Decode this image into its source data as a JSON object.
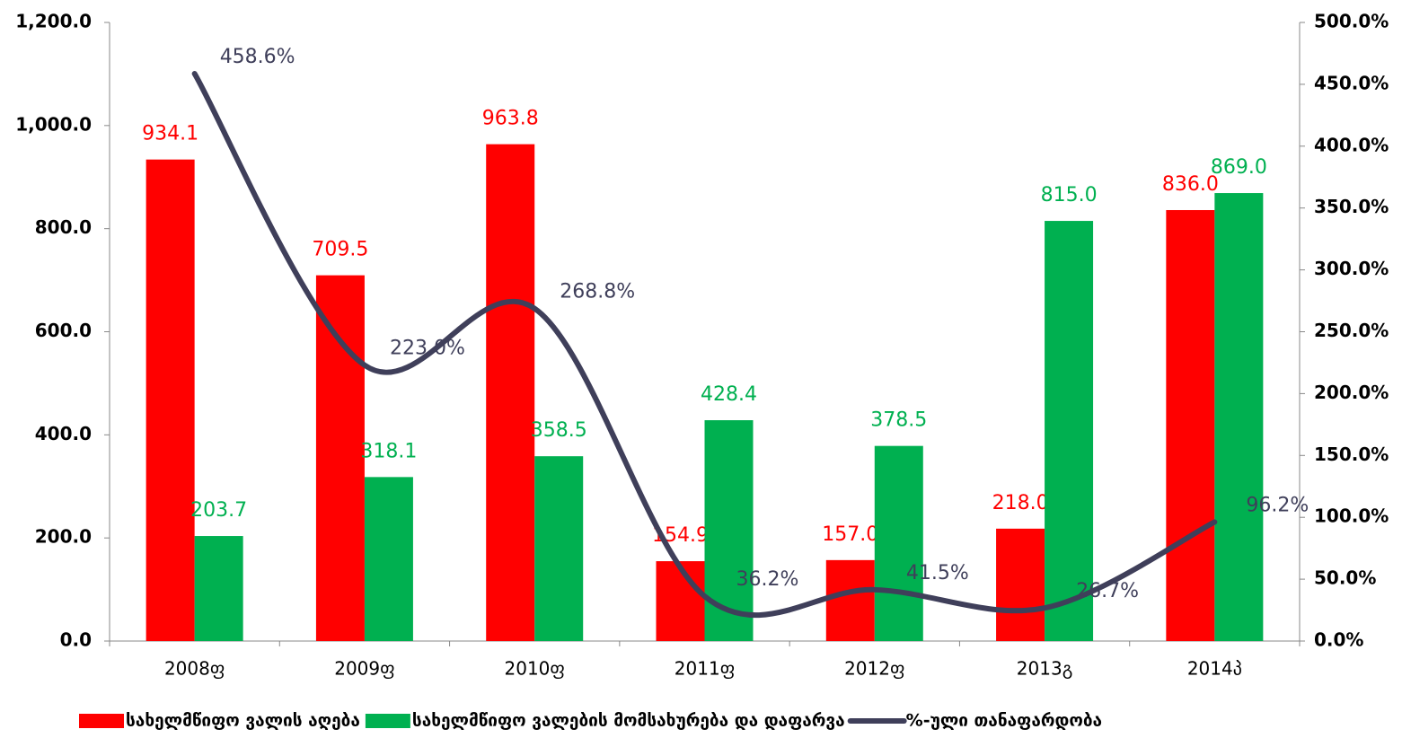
{
  "chart_data": {
    "type": "bar",
    "categories": [
      "2008ფ",
      "2009ფ",
      "2010ფ",
      "2011ფ",
      "2012ფ",
      "2013გ",
      "2014პ"
    ],
    "series": [
      {
        "name": "სახელმწიფო  ვალის აღება",
        "color": "#ff0000",
        "type": "bar",
        "values": [
          934.1,
          709.5,
          963.8,
          154.9,
          157.0,
          218.0,
          836.0
        ],
        "value_labels": [
          "934.1",
          "709.5",
          "963.8",
          "154.9",
          "157.0",
          "218.0",
          "836.0"
        ]
      },
      {
        "name": "სახელმწიფო ვალების მომსახურება და  დაფარვა",
        "color": "#00b050",
        "type": "bar",
        "values": [
          203.7,
          318.1,
          358.5,
          428.4,
          378.5,
          815.0,
          869.0
        ],
        "value_labels": [
          "203.7",
          "318.1",
          "358.5",
          "428.4",
          "378.5",
          "815.0",
          "869.0"
        ]
      },
      {
        "name": "%-ული თანაფარდობა",
        "color": "#3f3f5a",
        "type": "line",
        "axis": "y2",
        "values": [
          458.6,
          223.0,
          268.8,
          36.2,
          41.5,
          26.7,
          96.2
        ],
        "value_labels": [
          "458.6%",
          "223.0%",
          "268.8%",
          "36.2%",
          "41.5%",
          "26.7%",
          "96.2%"
        ]
      }
    ],
    "ylim": [
      0,
      1200
    ],
    "yticks": [
      {
        "value": 0,
        "label": "0.0"
      },
      {
        "value": 200,
        "label": "200.0"
      },
      {
        "value": 400,
        "label": "400.0"
      },
      {
        "value": 600,
        "label": "600.0"
      },
      {
        "value": 800,
        "label": "800.0"
      },
      {
        "value": 1000,
        "label": "1,000.0"
      },
      {
        "value": 1200,
        "label": "1,200.0"
      }
    ],
    "y2lim": [
      0,
      500
    ],
    "y2ticks": [
      {
        "value": 0,
        "label": "0.0%"
      },
      {
        "value": 50,
        "label": "50.0%"
      },
      {
        "value": 100,
        "label": "100.0%"
      },
      {
        "value": 150,
        "label": "150.0%"
      },
      {
        "value": 200,
        "label": "200.0%"
      },
      {
        "value": 250,
        "label": "250.0%"
      },
      {
        "value": 300,
        "label": "300.0%"
      },
      {
        "value": 350,
        "label": "350.0%"
      },
      {
        "value": 400,
        "label": "400.0%"
      },
      {
        "value": 450,
        "label": "450.0%"
      },
      {
        "value": 500,
        "label": "500.0%"
      }
    ],
    "legend": "bottom"
  }
}
